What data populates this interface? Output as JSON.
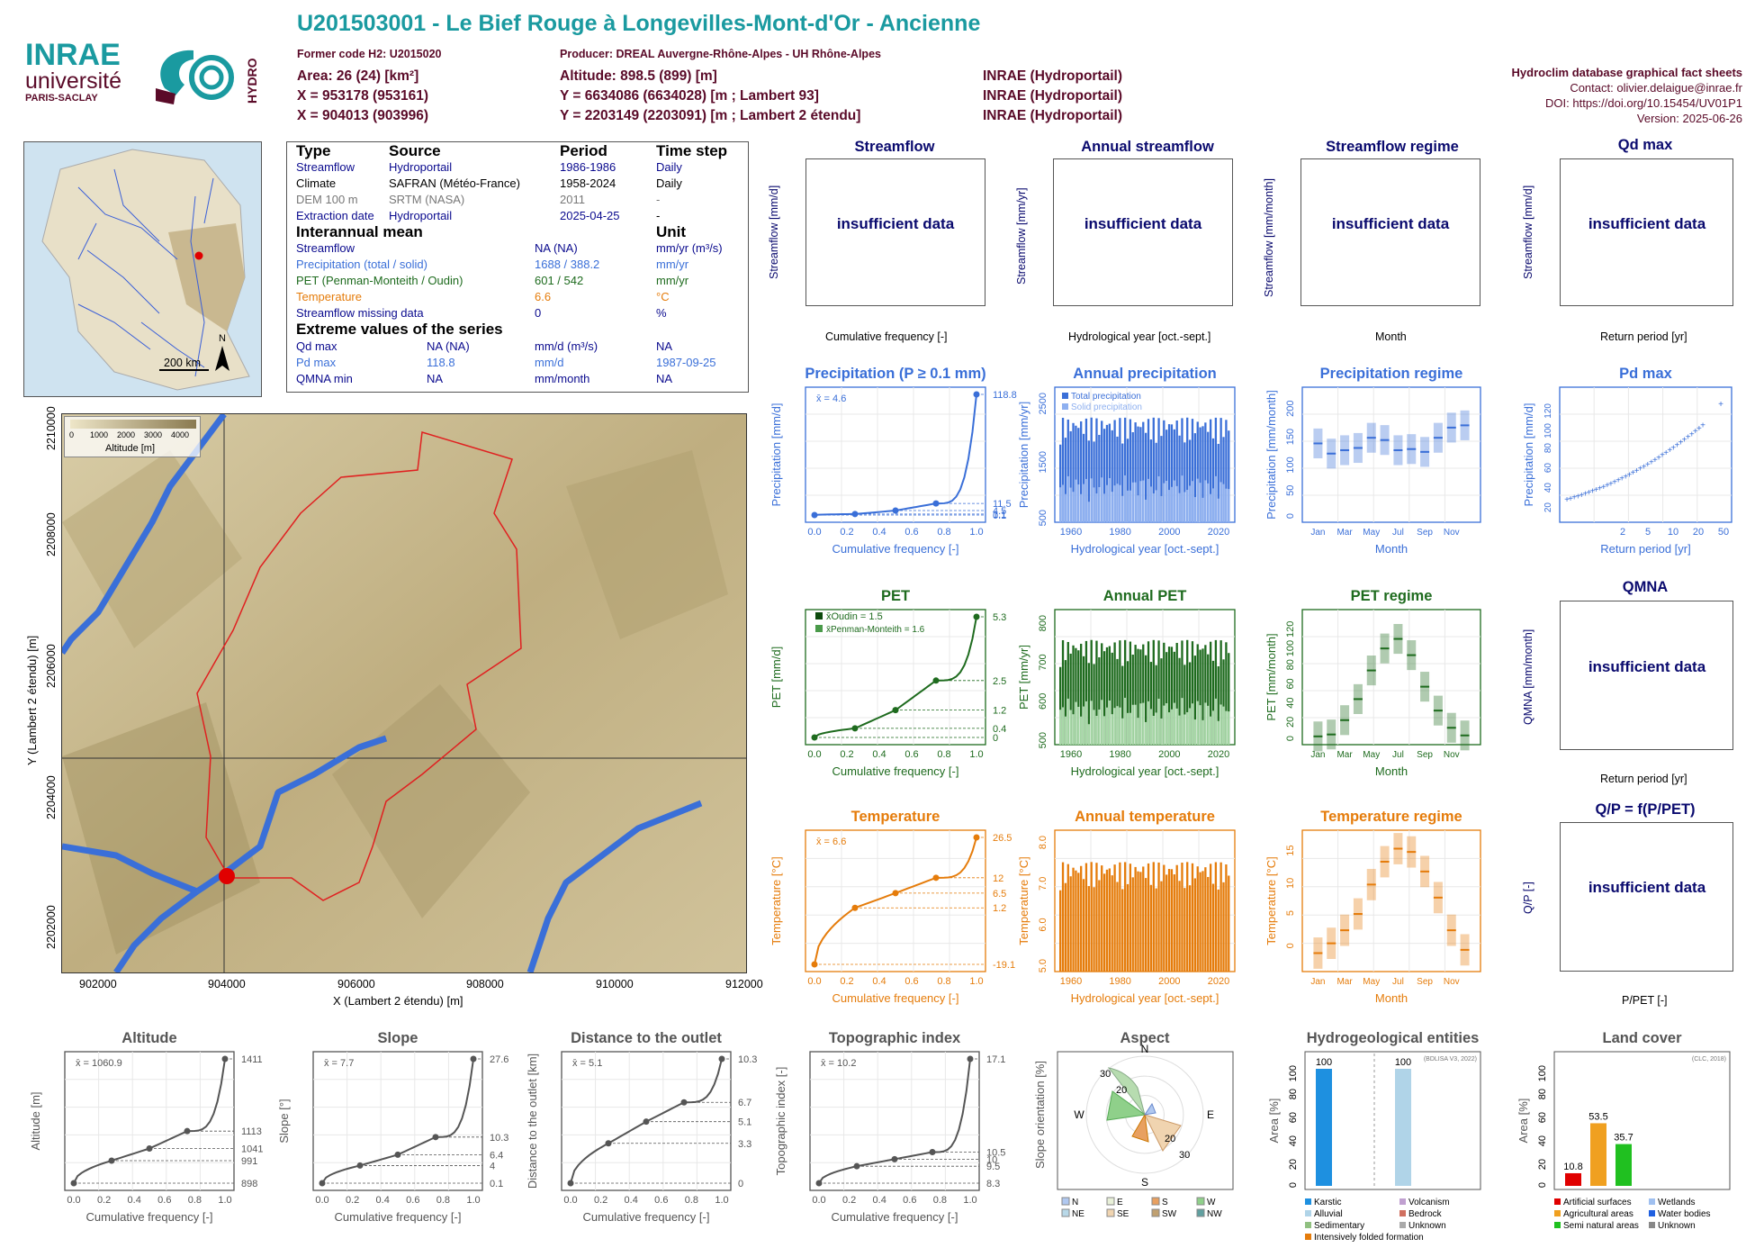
{
  "header": {
    "title": "U201503001 - Le Bief Rouge à Longevilles-Mont-d'Or - Ancienne",
    "former_code": "Former code H2: U2015020",
    "producer": "Producer: DREAL Auvergne-Rhône-Alpes - UH Rhône-Alpes",
    "area": "Area: 26 (24) [km²]",
    "altitude": "Altitude: 898.5 (899) [m]",
    "x93": "X = 953178 (953161)",
    "y93": "Y = 6634086 (6634028) [m ; Lambert 93]",
    "x2": "X = 904013 (903996)",
    "y2": "Y = 2203149 (2203091) [m ; Lambert 2 étendu]",
    "src1": "INRAE (Hydroportail)",
    "src2": "INRAE (Hydroportail)",
    "src3": "INRAE (Hydroportail)",
    "db": "Hydroclim database graphical fact sheets",
    "contact": "Contact: olivier.delaigue@inrae.fr",
    "doi": "DOI: https://doi.org/10.15454/UV01P1",
    "version": "Version: 2025-06-26",
    "logo_inrae": "INRAE",
    "logo_univ": "université",
    "logo_ps": "PARIS-SACLAY",
    "logo_hydro": "HYDRO"
  },
  "info": {
    "h_type": "Type",
    "h_source": "Source",
    "h_period": "Period",
    "h_step": "Time step",
    "rows": [
      {
        "type": "Streamflow",
        "source": "Hydroportail",
        "period": "1986-1986",
        "step": "Daily"
      },
      {
        "type": "Climate",
        "source": "SAFRAN (Météo-France)",
        "period": "1958-2024",
        "step": "Daily"
      },
      {
        "type": "DEM 100 m",
        "source": "SRTM (NASA)",
        "period": "2011",
        "step": "-"
      },
      {
        "type": "Extraction date",
        "source": "Hydroportail",
        "period": "2025-04-25",
        "step": "-"
      }
    ],
    "h_mean": "Interannual mean",
    "h_unit": "Unit",
    "means": [
      {
        "label": "Streamflow",
        "value": "NA (NA)",
        "unit": "mm/yr (m³/s)"
      },
      {
        "label": "Precipitation (total / solid)",
        "value": "1688 / 388.2",
        "unit": "mm/yr"
      },
      {
        "label": "PET (Penman-Monteith / Oudin)",
        "value": "601 / 542",
        "unit": "mm/yr"
      },
      {
        "label": "Temperature",
        "value": "6.6",
        "unit": "°C"
      },
      {
        "label": "Streamflow missing data",
        "value": "0",
        "unit": "%"
      }
    ],
    "h_extreme": "Extreme values of the series",
    "extremes": [
      {
        "label": "Qd max",
        "value": "NA (NA)",
        "unit": "mm/d (m³/s)",
        "date": "NA"
      },
      {
        "label": "Pd max",
        "value": "118.8",
        "unit": "mm/d",
        "date": "1987-09-25"
      },
      {
        "label": "QMNA min",
        "value": "NA",
        "unit": "mm/month",
        "date": "NA"
      }
    ]
  },
  "map": {
    "scale": "200 km",
    "north": "N",
    "legend_title": "Altitude [m]",
    "legend_ticks": [
      "0",
      "1000",
      "2000",
      "3000",
      "4000"
    ],
    "xlabel": "X (Lambert 2 étendu) [m]",
    "ylabel": "Y (Lambert 2 étendu) [m]",
    "xticks": [
      "902000",
      "904000",
      "906000",
      "908000",
      "910000",
      "912000"
    ],
    "yticks": [
      "2202000",
      "2204000",
      "2206000",
      "2208000",
      "2210000"
    ]
  },
  "panels": {
    "streamflow": {
      "title": "Streamflow",
      "ylabel": "Streamflow [mm/d]",
      "xlabel": "Cumulative frequency [-]",
      "msg": "insufficient data"
    },
    "annual_streamflow": {
      "title": "Annual streamflow",
      "ylabel": "Streamflow [mm/yr]",
      "xlabel": "Hydrological year [oct.-sept.]",
      "msg": "insufficient data"
    },
    "streamflow_regime": {
      "title": "Streamflow regime",
      "ylabel": "Streamflow [mm/month]",
      "xlabel": "Month",
      "msg": "insufficient data"
    },
    "qd_max": {
      "title": "Qd max",
      "ylabel": "Streamflow [mm/d]",
      "xlabel": "Return period [yr]",
      "msg": "insufficient data"
    },
    "qmna": {
      "title": "QMNA",
      "ylabel": "QMNA [mm/month]",
      "xlabel": "Return period [yr]",
      "msg": "insufficient data"
    },
    "qp": {
      "title": "Q/P = f(P/PET)",
      "ylabel": "Q/P [-]",
      "xlabel": "P/PET [-]",
      "msg": "insufficient data"
    }
  },
  "chart_data": [
    {
      "type": "line",
      "title": "Precipitation (P ≥ 0.1 mm)",
      "xlabel": "Cumulative frequency [-]",
      "ylabel": "Precipitation [mm/d]",
      "mean_label": "x̄ = 4.6",
      "x": [
        0,
        0.25,
        0.5,
        0.75,
        1
      ],
      "y": [
        0.1,
        1.1,
        4.5,
        11.5,
        118.8
      ]
    },
    {
      "type": "bar",
      "title": "Annual precipitation",
      "xlabel": "Hydrological year [oct.-sept.]",
      "ylabel": "Precipitation [mm/yr]",
      "series": [
        {
          "name": "Total precipitation"
        },
        {
          "name": "Solid precipitation"
        }
      ],
      "ylim": [
        0,
        2500
      ]
    },
    {
      "type": "bar",
      "title": "Precipitation regime",
      "xlabel": "Month",
      "ylabel": "Precipitation [mm/month]",
      "categories": [
        "Jan",
        "Feb",
        "Mar",
        "Apr",
        "May",
        "Jun",
        "Jul",
        "Aug",
        "Sep",
        "Oct",
        "Nov",
        "Dec"
      ],
      "values": [
        130,
        112,
        118,
        122,
        140,
        136,
        118,
        120,
        115,
        140,
        158,
        162
      ],
      "ylim": [
        0,
        220
      ]
    },
    {
      "type": "scatter",
      "title": "Pd max",
      "xlabel": "Return period [yr]",
      "ylabel": "Precipitation [mm/d]",
      "xticks": [
        "2",
        "5",
        "10",
        "20",
        "50"
      ],
      "yticks": [
        "20",
        "40",
        "60",
        "80",
        "100",
        "120"
      ]
    },
    {
      "type": "line",
      "title": "PET",
      "xlabel": "Cumulative frequency [-]",
      "ylabel": "PET [mm/d]",
      "series": [
        {
          "name": "x̄Oudin = 1.5"
        },
        {
          "name": "x̄Penman-Monteith = 1.6"
        }
      ],
      "x": [
        0,
        0.25,
        0.5,
        0.75,
        1
      ],
      "y": [
        0,
        0.4,
        1.2,
        2.5,
        5.3
      ]
    },
    {
      "type": "bar",
      "title": "Annual PET",
      "xlabel": "Hydrological year [oct.-sept.]",
      "ylabel": "PET [mm/yr]",
      "ylim": [
        450,
        820
      ]
    },
    {
      "type": "bar",
      "title": "PET regime",
      "xlabel": "Month",
      "ylabel": "PET [mm/month]",
      "categories": [
        "Jan",
        "Feb",
        "Mar",
        "Apr",
        "May",
        "Jun",
        "Jul",
        "Aug",
        "Sep",
        "Oct",
        "Nov",
        "Dec"
      ],
      "values": [
        3,
        5,
        20,
        42,
        72,
        95,
        105,
        88,
        55,
        30,
        12,
        4
      ],
      "ylim": [
        0,
        130
      ]
    },
    {
      "type": "line",
      "title": "Temperature",
      "xlabel": "Cumulative frequency [-]",
      "ylabel": "Temperature [°C]",
      "mean_label": "x̄ = 6.6",
      "x": [
        0,
        0.25,
        0.5,
        0.75,
        1
      ],
      "y": [
        -19.1,
        1.2,
        6.5,
        12.0,
        26.5
      ]
    },
    {
      "type": "bar",
      "title": "Annual temperature",
      "xlabel": "Hydrological year [oct.-sept.]",
      "ylabel": "Temperature [°C]",
      "ylim": [
        4.8,
        8.5
      ]
    },
    {
      "type": "bar",
      "title": "Temperature regime",
      "xlabel": "Month",
      "ylabel": "Temperature [°C]",
      "categories": [
        "Jan",
        "Feb",
        "Mar",
        "Apr",
        "May",
        "Jun",
        "Jul",
        "Aug",
        "Sep",
        "Oct",
        "Nov",
        "Dec"
      ],
      "values": [
        -1,
        0.5,
        2.5,
        5,
        9.5,
        13,
        15,
        14.5,
        11.5,
        7.5,
        2.5,
        -0.5
      ],
      "ylim": [
        -3,
        17
      ]
    },
    {
      "type": "line",
      "title": "Altitude",
      "xlabel": "Cumulative frequency [-]",
      "ylabel": "Altitude [m]",
      "mean_label": "x̄ = 1060.9",
      "x": [
        0,
        0.25,
        0.5,
        0.75,
        1
      ],
      "y": [
        898,
        991,
        1041,
        1113,
        1411
      ]
    },
    {
      "type": "line",
      "title": "Slope",
      "xlabel": "Cumulative frequency [-]",
      "ylabel": "Slope [°]",
      "mean_label": "x̄ = 7.7",
      "x": [
        0,
        0.25,
        0.5,
        0.75,
        1
      ],
      "y": [
        0.1,
        4.0,
        6.4,
        10.3,
        27.6
      ]
    },
    {
      "type": "line",
      "title": "Distance to the outlet",
      "xlabel": "Cumulative frequency [-]",
      "ylabel": "Distance to the outlet [km]",
      "mean_label": "x̄ = 5.1",
      "x": [
        0,
        0.25,
        0.5,
        0.75,
        1
      ],
      "y": [
        0.0,
        3.3,
        5.1,
        6.7,
        10.3
      ]
    },
    {
      "type": "line",
      "title": "Topographic index",
      "xlabel": "Cumulative frequency [-]",
      "ylabel": "Topographic index [-]",
      "mean_label": "x̄ = 10.2",
      "x": [
        0,
        0.25,
        0.5,
        0.75,
        1
      ],
      "y": [
        8.3,
        9.5,
        10.0,
        10.5,
        17.1
      ]
    },
    {
      "type": "pie",
      "title": "Aspect",
      "ylabel": "Slope orientation [%]",
      "categories": [
        "N",
        "NE",
        "E",
        "SE",
        "S",
        "SW",
        "W",
        "NW"
      ]
    },
    {
      "type": "bar",
      "title": "Hydrogeological entities",
      "ylabel": "Area [%]",
      "source": "(BDLISA V3, 2022)",
      "values": [
        100,
        100
      ],
      "legend": [
        "Karstic",
        "Alluvial",
        "Sedimentary",
        "Intensively folded formation",
        "Volcanism",
        "Bedrock",
        "Unknown"
      ]
    },
    {
      "type": "bar",
      "title": "Land cover",
      "ylabel": "Area [%]",
      "source": "(CLC, 2018)",
      "values": [
        10.8,
        53.5,
        35.7
      ],
      "legend": [
        "Artificial surfaces",
        "Agricultural areas",
        "Semi natural areas",
        "Wetlands",
        "Water bodies",
        "Unknown"
      ]
    }
  ],
  "colors": {
    "blue": "#3a6fd8",
    "green": "#1e6b1e",
    "orange": "#e57c0b",
    "title": "#1a9aa0",
    "dark": "#0a0a6e"
  }
}
